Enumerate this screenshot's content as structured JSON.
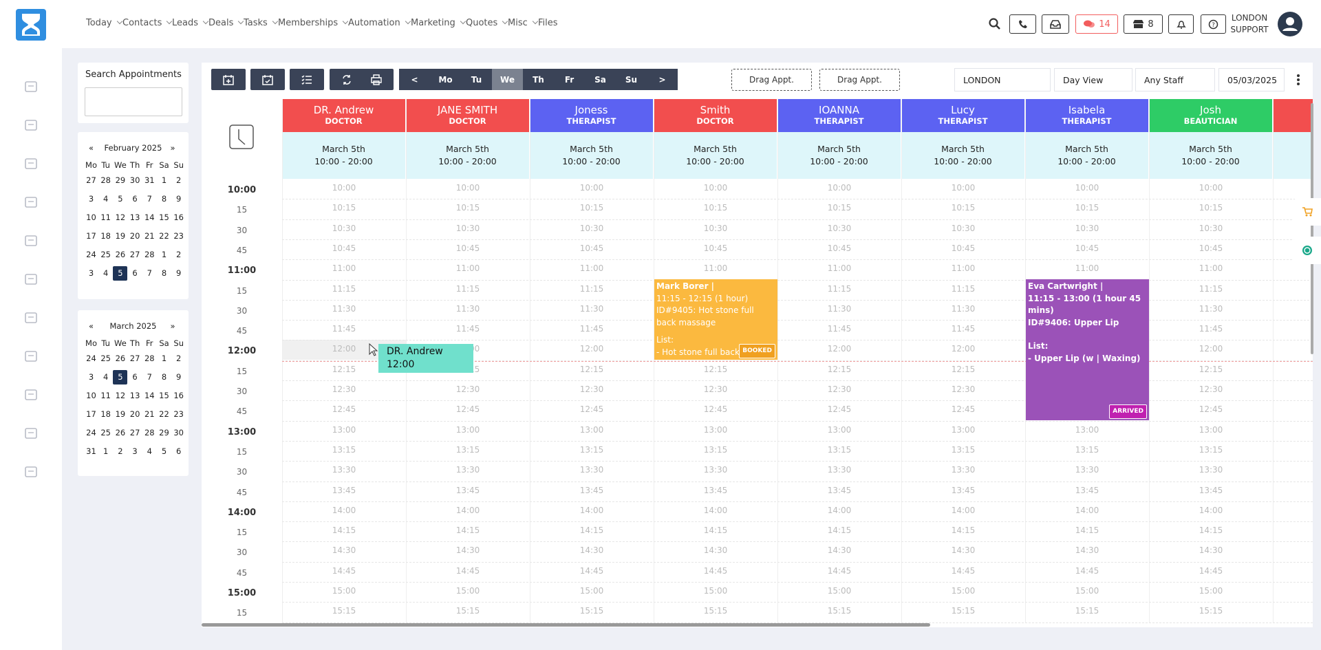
{
  "nav": {
    "menu": [
      "Today",
      "Contacts",
      "Leads",
      "Deals",
      "Tasks",
      "Memberships",
      "Automation",
      "Marketing",
      "Quotes",
      "Misc",
      "Files"
    ],
    "chat_count": "14",
    "store_count": "8",
    "user": [
      "LONDON",
      "SUPPORT"
    ]
  },
  "sidebar": {
    "search_title": "Search Appointments",
    "calendars": [
      {
        "prev": "«",
        "month": "February 2025",
        "next": "»",
        "weekdays": [
          "Mo",
          "Tu",
          "We",
          "Th",
          "Fr",
          "Sa",
          "Su"
        ],
        "weeks": [
          [
            "27",
            "28",
            "29",
            "30",
            "31",
            "1",
            "2"
          ],
          [
            "3",
            "4",
            "5",
            "6",
            "7",
            "8",
            "9"
          ],
          [
            "10",
            "11",
            "12",
            "13",
            "14",
            "15",
            "16"
          ],
          [
            "17",
            "18",
            "19",
            "20",
            "21",
            "22",
            "23"
          ],
          [
            "24",
            "25",
            "26",
            "27",
            "28",
            "1",
            "2"
          ],
          [
            "3",
            "4",
            "5",
            "6",
            "7",
            "8",
            "9"
          ]
        ]
      },
      {
        "prev": "«",
        "month": "March 2025",
        "next": "»",
        "weekdays": [
          "Mo",
          "Tu",
          "We",
          "Th",
          "Fr",
          "Sa",
          "Su"
        ],
        "weeks": [
          [
            "24",
            "25",
            "26",
            "27",
            "28",
            "1",
            "2"
          ],
          [
            "3",
            "4",
            "5",
            "6",
            "7",
            "8",
            "9"
          ],
          [
            "10",
            "11",
            "12",
            "13",
            "14",
            "15",
            "16"
          ],
          [
            "17",
            "18",
            "19",
            "20",
            "21",
            "22",
            "23"
          ],
          [
            "24",
            "25",
            "26",
            "27",
            "28",
            "29",
            "30"
          ],
          [
            "31",
            "1",
            "2",
            "3",
            "4",
            "5",
            "6"
          ]
        ]
      }
    ]
  },
  "toolbar": {
    "days": [
      "<",
      "Mo",
      "Tu",
      "We",
      "Th",
      "Fr",
      "Sa",
      "Su",
      ">"
    ],
    "drag": [
      "Drag Appt.",
      "Drag Appt."
    ],
    "filters": [
      "LONDON",
      "Day View",
      "Any Staff",
      "05/03/2025"
    ]
  },
  "staff": [
    {
      "name": "DR. Andrew",
      "role": "DOCTOR",
      "date": "March 5th",
      "hours": "10:00 - 20:00",
      "color": "#f24e4e"
    },
    {
      "name": "JANE SMITH",
      "role": "DOCTOR",
      "date": "March 5th",
      "hours": "10:00 - 20:00",
      "color": "#f24e4e"
    },
    {
      "name": "Joness",
      "role": "THERAPIST",
      "date": "March 5th",
      "hours": "10:00 - 20:00",
      "color": "#5c62f2"
    },
    {
      "name": "Smith",
      "role": "DOCTOR",
      "date": "March 5th",
      "hours": "10:00 - 20:00",
      "color": "#f24e4e"
    },
    {
      "name": "IOANNA",
      "role": "THERAPIST",
      "date": "March 5th",
      "hours": "10:00 - 20:00",
      "color": "#5c62f2"
    },
    {
      "name": "Lucy",
      "role": "THERAPIST",
      "date": "March 5th",
      "hours": "10:00 - 20:00",
      "color": "#5c62f2"
    },
    {
      "name": "Isabela",
      "role": "THERAPIST",
      "date": "March 5th",
      "hours": "10:00 - 20:00",
      "color": "#5c62f2"
    },
    {
      "name": "Josh",
      "role": "BEAUTICIAN",
      "date": "March 5th",
      "hours": "10:00 - 20:00",
      "color": "#2ecc66"
    }
  ],
  "time_labels": [
    "10:00",
    "15",
    "30",
    "45",
    "11:00",
    "15",
    "30",
    "45",
    "12:00",
    "15",
    "30",
    "45",
    "13:00",
    "15",
    "30",
    "45",
    "14:00",
    "15",
    "30",
    "45",
    "15:00",
    "15"
  ],
  "slots": [
    "10:00",
    "10:15",
    "10:30",
    "10:45",
    "11:00",
    "11:15",
    "11:30",
    "11:45",
    "12:00",
    "12:15",
    "12:30",
    "12:45",
    "13:00",
    "13:15",
    "13:30",
    "13:45",
    "14:00",
    "14:15",
    "14:30",
    "14:45",
    "15:00",
    "15:15"
  ],
  "appointments": [
    {
      "client": "Mark Borer |",
      "time": "11:15 - 12:15 (1 hour)",
      "service": "ID#9405: Hot stone full back massage",
      "list_title": "List:",
      "list_item": "- Hot stone full back",
      "status": "BOOKED"
    },
    {
      "client": "Eva Cartwright |",
      "time": "11:15 - 13:00 (1 hour 45 mins)",
      "service": "ID#9406: Upper Lip",
      "list_title": "List:",
      "list_item": "- Upper Lip (w | Waxing)",
      "status": "ARRIVED"
    }
  ],
  "drag_preview": {
    "name": "DR. Andrew",
    "time": "12:00"
  }
}
